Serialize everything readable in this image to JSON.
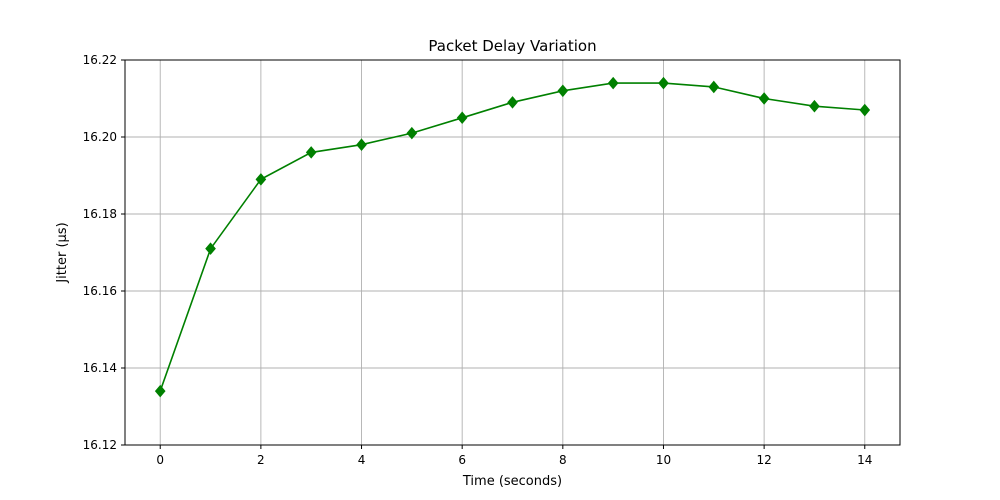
{
  "chart_data": {
    "type": "line",
    "title": "Packet Delay Variation",
    "xlabel": "Time (seconds)",
    "ylabel": "Jitter (µs)",
    "xlim": [
      -0.7,
      14.7
    ],
    "ylim": [
      16.12,
      16.22
    ],
    "xticks": [
      0,
      2,
      4,
      6,
      8,
      10,
      12,
      14
    ],
    "yticks": [
      16.12,
      16.14,
      16.16,
      16.18,
      16.2,
      16.22
    ],
    "ytick_labels": [
      "16.12",
      "16.14",
      "16.16",
      "16.18",
      "16.20",
      "16.22"
    ],
    "grid": true,
    "series": [
      {
        "color": "#008000",
        "marker": "diamond",
        "x": [
          0,
          1,
          2,
          3,
          4,
          5,
          6,
          7,
          8,
          9,
          10,
          11,
          12,
          13,
          14
        ],
        "y": [
          16.134,
          16.171,
          16.189,
          16.196,
          16.198,
          16.201,
          16.205,
          16.209,
          16.212,
          16.214,
          16.214,
          16.213,
          16.21,
          16.208,
          16.207
        ]
      }
    ]
  }
}
